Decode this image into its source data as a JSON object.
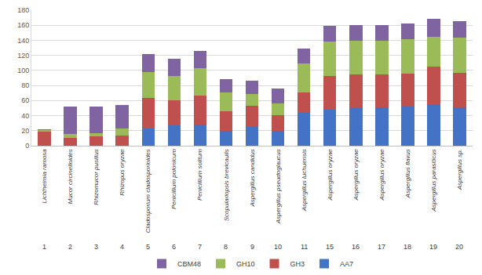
{
  "chart_data": {
    "type": "bar",
    "stacked": true,
    "grid": true,
    "legend": "bottom",
    "categories": [
      "Lichtheimia ramosa",
      "Mucor circinelloides",
      "Rhizomucor pusillus",
      "Rhizopus oryzae",
      "Cladosporium cladosporioides",
      "Penicillium polonicum",
      "Penicillium solitum",
      "Scopulariopsis brevicaulis",
      "Aspergillus candidus",
      "Aspergillus pseudoglaucus",
      "Aspergillus luchuensis",
      "Aspergillus oryzae",
      "Aspergillus oryzae",
      "Aspergillus oryzae",
      "Aspergillus flavus",
      "Aspergillus parasiticus",
      "Aspergillus sp."
    ],
    "category_numbers": [
      "1",
      "2",
      "3",
      "4",
      "5",
      "6",
      "7",
      "8",
      "9",
      "10",
      "11",
      "15",
      "16",
      "17",
      "18",
      "19",
      "20"
    ],
    "series": [
      {
        "name": "AA7",
        "color": "#4472c4",
        "values": [
          0,
          0,
          0,
          0,
          23,
          27,
          28,
          20,
          25,
          20,
          44,
          48,
          50,
          51,
          52,
          55,
          51
        ]
      },
      {
        "name": "GH3",
        "color": "#c0504d",
        "values": [
          19,
          10,
          13,
          14,
          40,
          33,
          39,
          26,
          28,
          21,
          27,
          45,
          45,
          44,
          44,
          50,
          46
        ]
      },
      {
        "name": "GH10",
        "color": "#9bbb59",
        "values": [
          2,
          6,
          4,
          9,
          35,
          33,
          36,
          25,
          16,
          15,
          38,
          45,
          44,
          44,
          45,
          40,
          47
        ]
      },
      {
        "name": "CBM48",
        "color": "#8064a2",
        "values": [
          1,
          36,
          35,
          31,
          24,
          23,
          23,
          17,
          17,
          20,
          20,
          21,
          21,
          21,
          21,
          24,
          21
        ]
      }
    ],
    "ylim": [
      0,
      180
    ],
    "yticks": [
      0,
      20,
      40,
      60,
      80,
      100,
      120,
      140,
      160,
      180
    ]
  }
}
